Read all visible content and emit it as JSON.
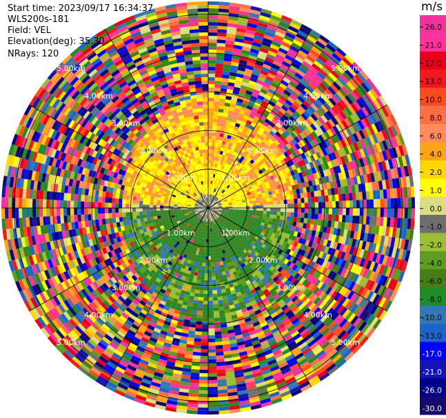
{
  "header": {
    "start_time": "Start time: 2023/09/17 16:34:37",
    "instrument": "WLS200s-181",
    "field": "Field: VEL",
    "elevation": "Elevation(deg): 35.30",
    "nrays": "NRays: 120"
  },
  "colorbar": {
    "unit": "m/s",
    "ticks": [
      "26.0",
      "21.0",
      "17.0",
      "13.0",
      "10.0",
      "8.0",
      "6.0",
      "4.0",
      "2.0",
      "1.0",
      "0.0",
      "-1.0",
      "-2.0",
      "-4.0",
      "-6.0",
      "-8.0",
      "-10.0",
      "-13.0",
      "-17.0",
      "-21.0",
      "-26.0",
      "-30.0"
    ],
    "colors": [
      "#f0329b",
      "#ff3399",
      "#e6001e",
      "#f0191e",
      "#ff4b1e",
      "#ff6e46",
      "#ff8c5a",
      "#ffa514",
      "#ffd700",
      "#ffff00",
      "#dcdc82",
      "#6e6e6e",
      "#9bbe32",
      "#5f9b1e",
      "#467d14",
      "#1e8c28",
      "#3278b4",
      "#1e64c8",
      "#0000ff",
      "#1414b4",
      "#00008c",
      "#140a6e"
    ]
  },
  "chart_data": {
    "type": "ppi",
    "title": "",
    "field": "VEL",
    "nrays": 120,
    "elevation_deg": 35.3,
    "range_rings_km": [
      1.0,
      2.0,
      3.0,
      4.0,
      5.0
    ],
    "ring_labels": [
      "1.00km",
      "2.00km",
      "3.00km",
      "4.00km",
      "5.00km"
    ],
    "vlim": [
      -30.0,
      26.0
    ]
  }
}
